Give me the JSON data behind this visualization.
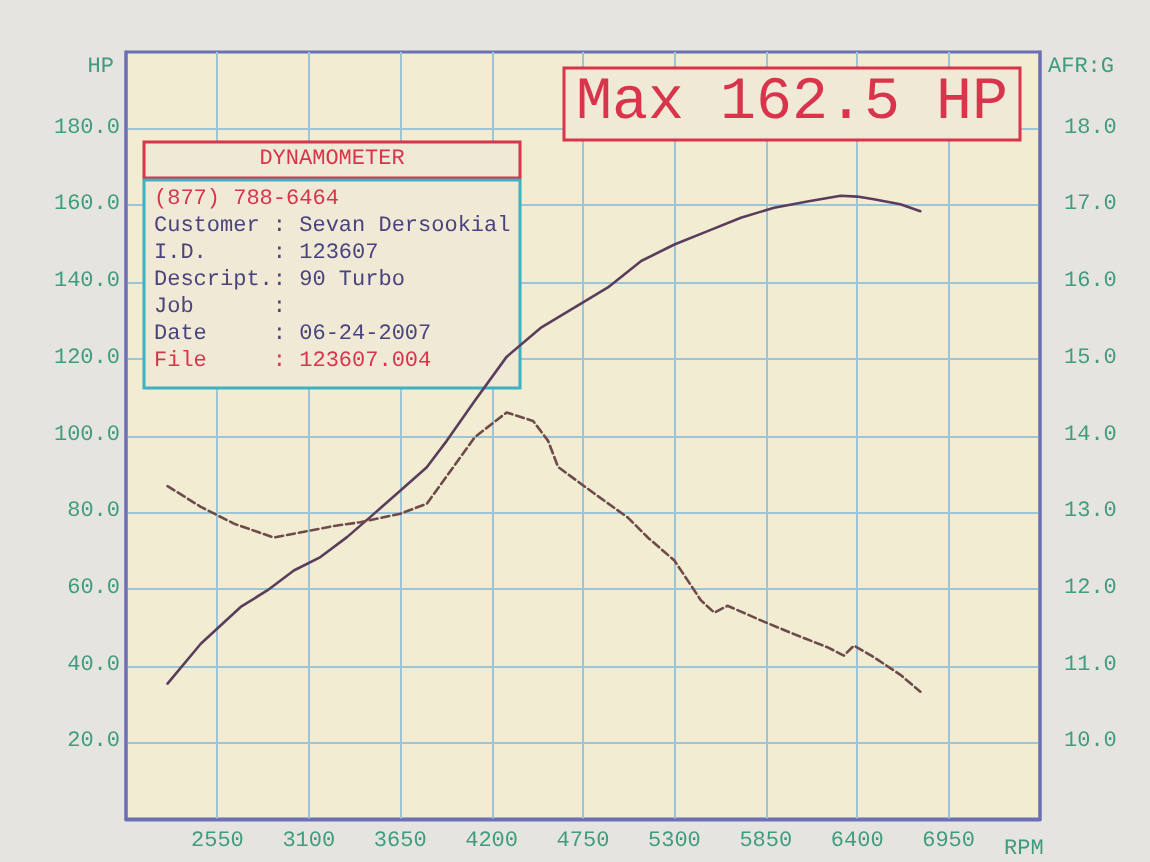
{
  "chart_data": {
    "type": "line",
    "xlabel": "RPM",
    "ylabel": "HP",
    "y2label": "AFR:G",
    "annotations": [
      "Max 162.5 HP",
      "DYNAMOMETER",
      "(877) 788-6464",
      "Customer : Sevan Dersookial",
      "I.D.     : 123607",
      "Descript.: 90 Turbo",
      "Job      :",
      "Date     : 06-24-2007",
      "File     : 123607.004"
    ],
    "series": [
      {
        "color": "#5a3d5c",
        "line_style": "solid",
        "x": [
          2250,
          2450,
          2690,
          2850,
          3010,
          3170,
          3330,
          3490,
          3650,
          3810,
          3930,
          4100,
          4290,
          4500,
          4700,
          4900,
          5100,
          5300,
          5500,
          5700,
          5900,
          6100,
          6300,
          6400,
          6500,
          6660,
          6780
        ],
        "values": [
          35.3,
          45.7,
          55.3,
          59.6,
          64.8,
          68.3,
          73.5,
          79.5,
          85.6,
          91.7,
          98.6,
          109.1,
          120.5,
          128.2,
          133.4,
          138.6,
          145.5,
          149.8,
          153.3,
          156.8,
          159.4,
          161.0,
          162.5,
          162.3,
          161.6,
          160.3,
          158.5
        ]
      },
      {
        "color": "#6e4a4a",
        "line_style": "dashed",
        "axis": "y2",
        "x": [
          2250,
          2450,
          2650,
          2890,
          3010,
          3250,
          3410,
          3650,
          3810,
          3970,
          4100,
          4290,
          4450,
          4540,
          4600,
          4820,
          5020,
          5140,
          5300,
          5460,
          5540,
          5620,
          5820,
          6020,
          6220,
          6320,
          6380,
          6500,
          6660,
          6780
        ],
        "values": [
          13.34,
          13.07,
          12.85,
          12.67,
          12.72,
          12.82,
          12.87,
          12.98,
          13.11,
          13.59,
          13.98,
          14.3,
          14.19,
          13.93,
          13.59,
          13.24,
          12.93,
          12.67,
          12.37,
          11.85,
          11.69,
          11.78,
          11.59,
          11.41,
          11.24,
          11.13,
          11.26,
          11.11,
          10.88,
          10.66
        ]
      }
    ],
    "xlim": [
      2000,
      7500
    ],
    "xticks": [
      2550,
      3100,
      3650,
      4200,
      4750,
      5300,
      5850,
      6400,
      6950
    ],
    "ylim": [
      0,
      200
    ],
    "yticks": [
      {
        "value": 20,
        "label": "20.0"
      },
      {
        "value": 40,
        "label": "40.0"
      },
      {
        "value": 60,
        "label": "60.0"
      },
      {
        "value": 80,
        "label": "80.0"
      },
      {
        "value": 100,
        "label": "100.0"
      },
      {
        "value": 120,
        "label": "120.0"
      },
      {
        "value": 140,
        "label": "140.0"
      },
      {
        "value": 160,
        "label": "160.0"
      },
      {
        "value": 180,
        "label": "180.0"
      }
    ],
    "y2lim": [
      9,
      19
    ],
    "y2ticks": [
      {
        "value": 10,
        "label": "10.0"
      },
      {
        "value": 11,
        "label": "11.0"
      },
      {
        "value": 12,
        "label": "12.0"
      },
      {
        "value": 13,
        "label": "13.0"
      },
      {
        "value": 14,
        "label": "14.0"
      },
      {
        "value": 15,
        "label": "15.0"
      },
      {
        "value": 16,
        "label": "16.0"
      },
      {
        "value": 17,
        "label": "17.0"
      },
      {
        "value": 18,
        "label": "18.0"
      }
    ],
    "grid": true,
    "marker": "none"
  }
}
